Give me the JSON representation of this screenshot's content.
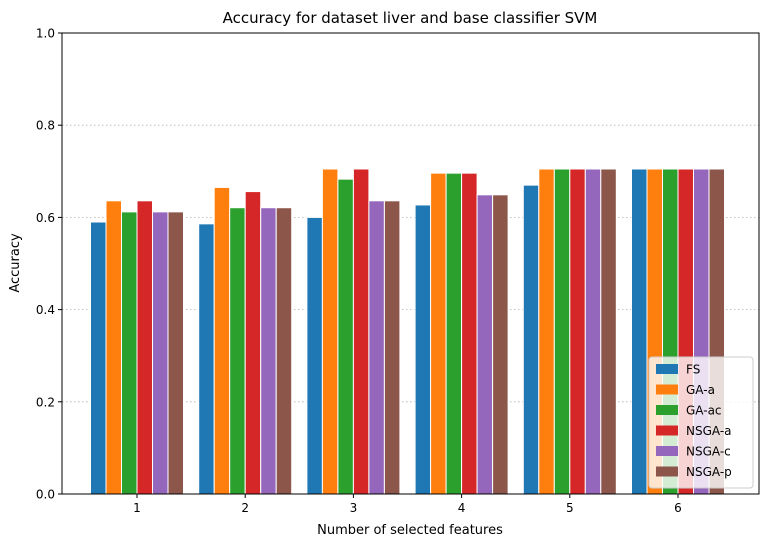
{
  "chart_data": {
    "type": "bar",
    "title": "Accuracy for dataset liver and base classifier SVM",
    "xlabel": "Number of selected features",
    "ylabel": "Accuracy",
    "categories": [
      "1",
      "2",
      "3",
      "4",
      "5",
      "6"
    ],
    "ylim": [
      0,
      1.0
    ],
    "yticks": [
      "0.0",
      "0.2",
      "0.4",
      "0.6",
      "0.8",
      "1.0"
    ],
    "grid": "y-dotted",
    "legend_position": "lower-right",
    "series": [
      {
        "name": "FS",
        "color": "#1f77b4",
        "values": [
          0.59,
          0.586,
          0.6,
          0.627,
          0.67,
          0.705
        ]
      },
      {
        "name": "GA-a",
        "color": "#ff7f0e",
        "values": [
          0.636,
          0.665,
          0.705,
          0.696,
          0.705,
          0.705
        ]
      },
      {
        "name": "GA-ac",
        "color": "#2ca02c",
        "values": [
          0.612,
          0.621,
          0.683,
          0.696,
          0.705,
          0.705
        ]
      },
      {
        "name": "NSGA-a",
        "color": "#d62728",
        "values": [
          0.636,
          0.656,
          0.705,
          0.696,
          0.705,
          0.705
        ]
      },
      {
        "name": "NSGA-c",
        "color": "#9467bd",
        "values": [
          0.612,
          0.621,
          0.636,
          0.649,
          0.705,
          0.705
        ]
      },
      {
        "name": "NSGA-p",
        "color": "#8c564b",
        "values": [
          0.612,
          0.621,
          0.636,
          0.649,
          0.705,
          0.705
        ]
      }
    ]
  }
}
